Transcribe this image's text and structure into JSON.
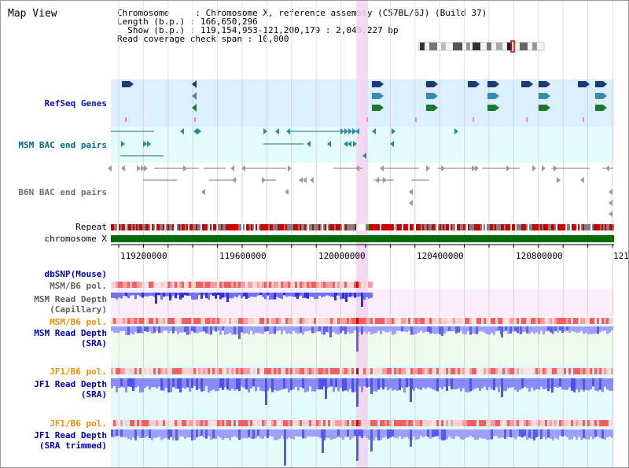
{
  "app": {
    "title": "Map View"
  },
  "header": {
    "line1": "Chromosome     : Chromosome X, reference assembly (C57BL/6J) (Build 37)",
    "line2": "Length (b.p.) : 166,650,296",
    "line3": "  Show (b.p.) : 119,154,953-121,200,179 : 2,045,227 bp",
    "line4": "Read coverage check span : 10,000"
  },
  "tracks": {
    "refseq": "RefSeq Genes",
    "msm_bac": "MSM BAC end pairs",
    "b6n_bac": "B6N BAC end pairs",
    "repeat": "Repeat",
    "chromosome": "chromosome X",
    "dbsnp": "dbSNP(Mouse)",
    "msm_b6_pol_1": "MSM/B6 pol.",
    "msm_depth_cap_1": "MSM Read Depth",
    "msm_depth_cap_2": "(Capillary)",
    "msm_b6_pol_2": "MSM/B6 pol.",
    "msm_depth_sra_1": "MSM Read Depth",
    "msm_depth_sra_2": "(SRA)",
    "jf1_b6_pol_1": "JF1/B6 pol.",
    "jf1_depth_sra_1": "JF1 Read Depth",
    "jf1_depth_sra_2": "(SRA)",
    "jf1_b6_pol_2": "JF1/B6 pol.",
    "jf1_depth_trim_1": "JF1 Read Depth",
    "jf1_depth_trim_2": "(SRA trimmed)"
  },
  "axis": {
    "ticks": [
      "119200000",
      "119600000",
      "120000000",
      "120400000",
      "120800000",
      "121"
    ]
  },
  "colors": {
    "refseq_bg": "#dcefff",
    "msm_bg": "#e3fbfb",
    "highlight": "#f4d2f0",
    "chromosome": "#006c00",
    "depth_blue": "#4a4aff",
    "depth_light": "#9f9fff",
    "pol_red": "#f04040",
    "navy": "#0000b0",
    "orange": "#f28c00"
  }
}
